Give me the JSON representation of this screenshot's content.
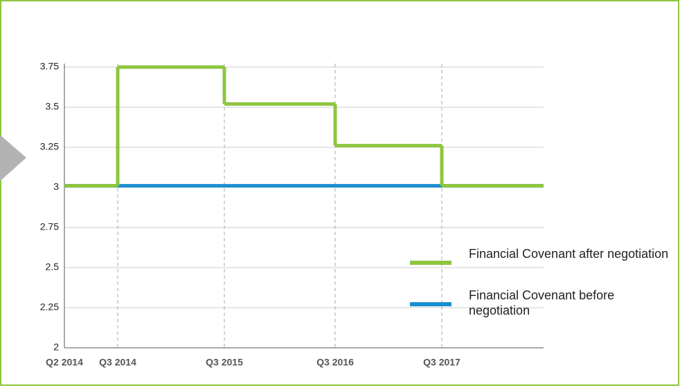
{
  "chart_data": {
    "type": "step",
    "categories": [
      "Q2 2014",
      "Q3 2014",
      "Q3 2015",
      "Q3 2016",
      "Q3 2017"
    ],
    "series": [
      {
        "name": "Financial Covenant after negotiation",
        "color": "#8dc63f",
        "values": [
          3.01,
          3.75,
          3.52,
          3.26,
          3.01
        ]
      },
      {
        "name": "Financial Covenant before negotiation",
        "color": "#1a8fcf",
        "values": [
          3.01,
          3.01,
          3.01,
          3.01,
          3.01
        ]
      }
    ],
    "ylim": [
      2,
      3.75
    ],
    "yticks": [
      2,
      2.25,
      2.5,
      2.75,
      3,
      3.25,
      3.5,
      3.75
    ],
    "grid": true,
    "legend": "lower right"
  }
}
